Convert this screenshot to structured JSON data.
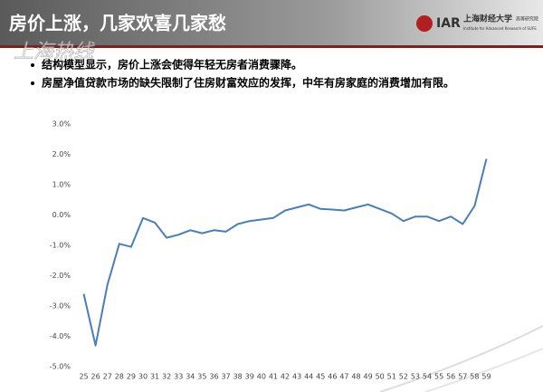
{
  "header": {
    "title": "房价上涨，几家欢喜几家愁",
    "watermark": "上海热线",
    "logo_school": "上海财经大学",
    "logo_dept": "高等研究院",
    "logo_abbr": "IAR",
    "logo_en": "Institute for Advanced Research of SUFE"
  },
  "bullets": [
    "结构模型显示，房价上涨会使得年轻无房者消费骤降。",
    "房屋净值贷款市场的缺失限制了住房财富效应的发挥，中年有房家庭的消费增加有限。"
  ],
  "chart_data": {
    "type": "line",
    "categories": [
      "25",
      "26",
      "27",
      "28",
      "29",
      "30",
      "31",
      "32",
      "33",
      "34",
      "35",
      "36",
      "37",
      "38",
      "39",
      "40",
      "41",
      "42",
      "43",
      "44",
      "45",
      "46",
      "47",
      "48",
      "49",
      "50",
      "51",
      "52",
      "53",
      "54",
      "55",
      "56",
      "57",
      "58",
      "59"
    ],
    "values": [
      -2.6,
      -4.3,
      -2.3,
      -0.95,
      -1.05,
      -0.1,
      -0.25,
      -0.75,
      -0.65,
      -0.5,
      -0.6,
      -0.5,
      -0.55,
      -0.3,
      -0.2,
      -0.15,
      -0.1,
      0.15,
      0.25,
      0.35,
      0.2,
      0.18,
      0.15,
      0.25,
      0.35,
      0.2,
      0.05,
      -0.2,
      -0.05,
      -0.05,
      -0.2,
      -0.05,
      -0.3,
      0.3,
      1.85
    ],
    "color": "#4a7ebb",
    "ylim": [
      -5,
      3
    ],
    "yticks": [
      {
        "value": -5,
        "label": "-5.0%"
      },
      {
        "value": -4,
        "label": "-4.0%"
      },
      {
        "value": -3,
        "label": "-3.0%"
      },
      {
        "value": -2,
        "label": "-2.0%"
      },
      {
        "value": -1,
        "label": "-1.0%"
      },
      {
        "value": 0,
        "label": "0.0%"
      },
      {
        "value": 1,
        "label": "1.0%"
      },
      {
        "value": 2,
        "label": "2.0%"
      },
      {
        "value": 3,
        "label": "3.0%"
      }
    ],
    "grid": false
  }
}
